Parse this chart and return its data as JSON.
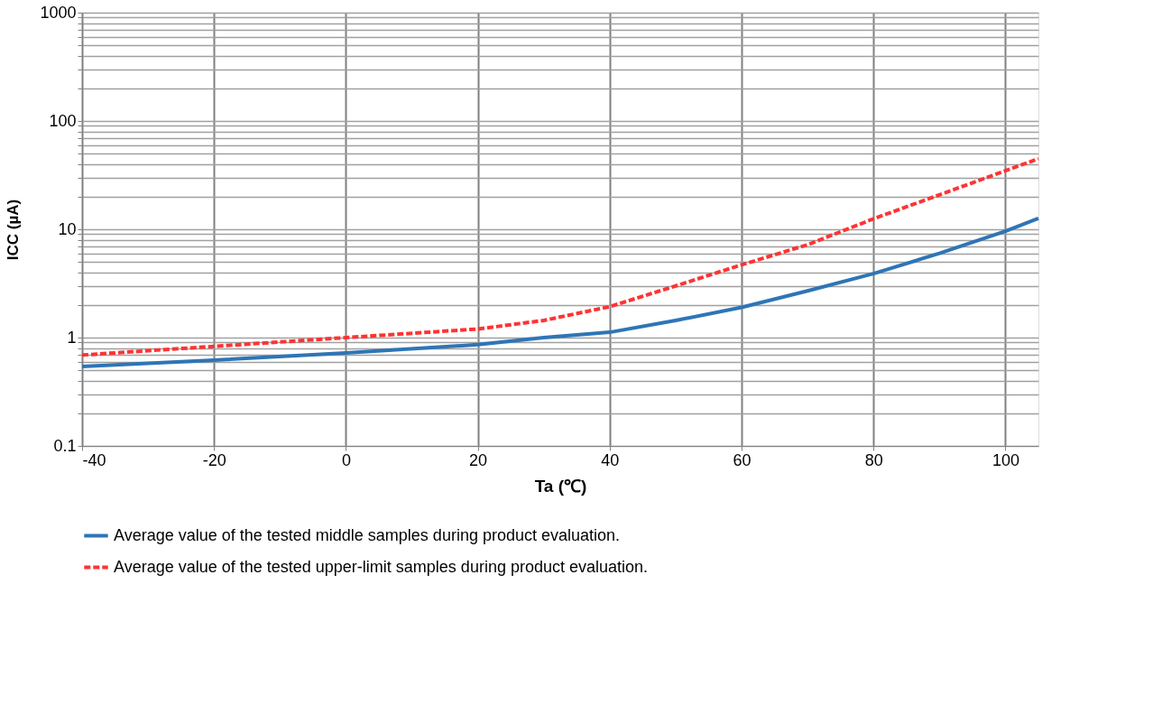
{
  "chart_data": {
    "type": "line",
    "xlabel": "Ta (℃)",
    "ylabel": "ICC (µA)",
    "x": [
      -40,
      -20,
      0,
      20,
      30,
      40,
      50,
      60,
      70,
      80,
      90,
      100,
      105
    ],
    "series": [
      {
        "name": "Average value of the tested middle samples during product evaluation.",
        "color": "#2e75b6",
        "line_style": "solid",
        "values": [
          0.54,
          0.62,
          0.72,
          0.86,
          1.0,
          1.12,
          1.44,
          1.9,
          2.7,
          3.9,
          6.0,
          9.6,
          12.6
        ]
      },
      {
        "name": "Average value of the tested upper-limit samples during product evaluation.",
        "color": "#ff3333",
        "line_style": "dashed",
        "values": [
          0.69,
          0.83,
          1.0,
          1.2,
          1.44,
          1.93,
          3.0,
          4.7,
          7.2,
          12.5,
          20.8,
          34.7,
          44.8
        ]
      }
    ],
    "log": "y",
    "xlim": [
      -40,
      105
    ],
    "xticks": [
      -40,
      -20,
      0,
      20,
      40,
      60,
      80,
      100
    ],
    "ylim": [
      0.1,
      1000
    ],
    "yticks": [
      0.1,
      {
        "value": 0.2,
        "label": null
      },
      {
        "value": 0.3,
        "label": null
      },
      {
        "value": 0.4,
        "label": null
      },
      {
        "value": 0.5,
        "label": null
      },
      {
        "value": 0.6,
        "label": null
      },
      {
        "value": 0.7,
        "label": null
      },
      {
        "value": 0.8,
        "label": null
      },
      {
        "value": 0.9,
        "label": null
      },
      1,
      {
        "value": 2,
        "label": null
      },
      {
        "value": 3,
        "label": null
      },
      {
        "value": 4,
        "label": null
      },
      {
        "value": 5,
        "label": null
      },
      {
        "value": 6,
        "label": null
      },
      {
        "value": 7,
        "label": null
      },
      {
        "value": 8,
        "label": null
      },
      {
        "value": 9,
        "label": null
      },
      10,
      {
        "value": 20,
        "label": null
      },
      {
        "value": 30,
        "label": null
      },
      {
        "value": 40,
        "label": null
      },
      {
        "value": 50,
        "label": null
      },
      {
        "value": 60,
        "label": null
      },
      {
        "value": 70,
        "label": null
      },
      {
        "value": 80,
        "label": null
      },
      {
        "value": 90,
        "label": null
      },
      100,
      {
        "value": 200,
        "label": null
      },
      {
        "value": 300,
        "label": null
      },
      {
        "value": 400,
        "label": null
      },
      {
        "value": 500,
        "label": null
      },
      {
        "value": 600,
        "label": null
      },
      {
        "value": 700,
        "label": null
      },
      {
        "value": 800,
        "label": null
      },
      {
        "value": 900,
        "label": null
      },
      1000
    ],
    "grid": true,
    "legend": "bottom",
    "marker": "none"
  }
}
